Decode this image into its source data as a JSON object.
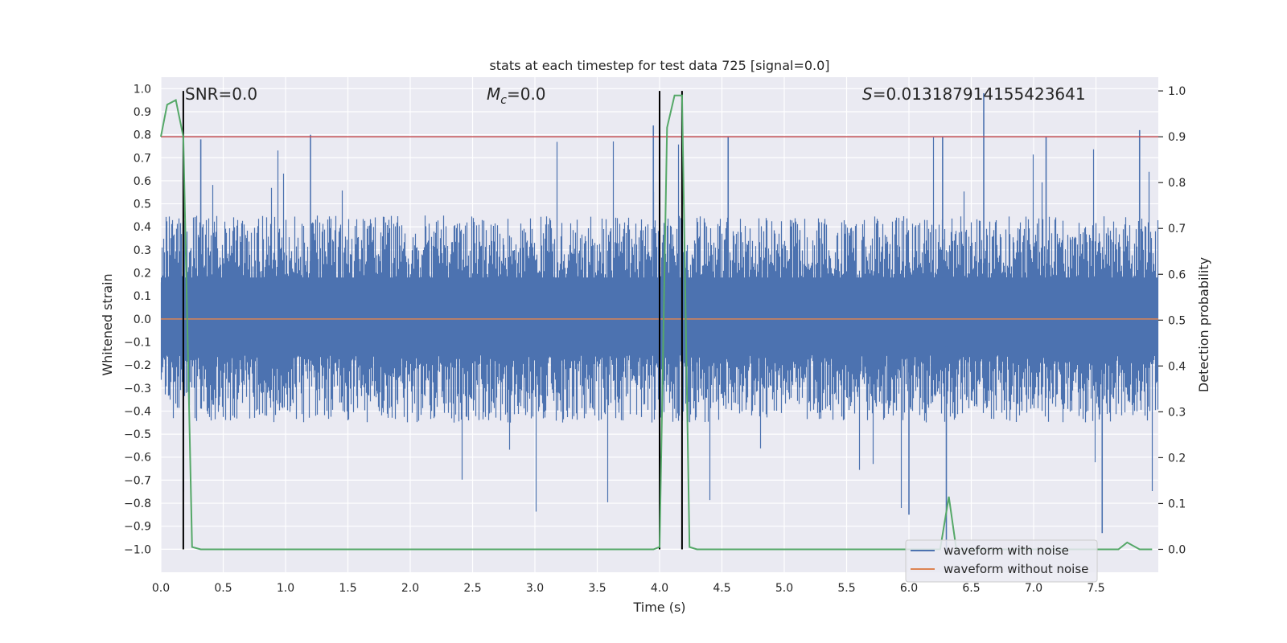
{
  "chart_data": {
    "type": "line",
    "title": "stats at each timestep for test data 725 [signal=0.0]",
    "xlabel": "Time (s)",
    "ylabel_left": "Whitened strain",
    "ylabel_right": "Detection probability",
    "xlim": [
      0.0,
      8.0
    ],
    "ylim_left": [
      -1.1,
      1.05
    ],
    "ylim_right": [
      -0.05,
      1.03
    ],
    "x_ticks": [
      "0.0",
      "0.5",
      "1.0",
      "1.5",
      "2.0",
      "2.5",
      "3.0",
      "3.5",
      "4.0",
      "4.5",
      "5.0",
      "5.5",
      "6.0",
      "6.5",
      "7.0",
      "7.5"
    ],
    "y_left_ticks": [
      "1.0",
      "0.9",
      "0.8",
      "0.7",
      "0.6",
      "0.5",
      "0.4",
      "0.3",
      "0.2",
      "0.1",
      "0.0",
      "-0.1",
      "-0.2",
      "-0.3",
      "-0.4",
      "-0.5",
      "-0.6",
      "-0.7",
      "-0.8",
      "-0.9",
      "-1.0"
    ],
    "y_right_ticks": [
      "1.0",
      "0.9",
      "0.8",
      "0.7",
      "0.6",
      "0.5",
      "0.4",
      "0.3",
      "0.2",
      "0.1",
      "0.0"
    ],
    "annotations": {
      "snr": "SNR=0.0",
      "mc_symbol": "M",
      "mc_subscript": "c",
      "mc_value": "=0.0",
      "s_symbol": "S",
      "s_value": "=0.013187914155423641"
    },
    "threshold": {
      "axis": "right",
      "value": 0.9,
      "color": "#c44e52"
    },
    "vertical_markers": [
      0.18,
      4.0,
      4.18
    ],
    "noisy_waveform": {
      "name": "waveform with noise",
      "color": "#4c72b0",
      "typical_range": [
        -0.45,
        0.45
      ],
      "max_peak": 0.98,
      "min_trough": -1.02
    },
    "clean_waveform": {
      "name": "waveform without noise",
      "color": "#dd8452",
      "value": 0.0
    },
    "detection_probability": {
      "color": "#55a868",
      "x": [
        0.0,
        0.05,
        0.12,
        0.18,
        0.25,
        0.32,
        1.0,
        2.0,
        3.0,
        3.95,
        4.0,
        4.06,
        4.12,
        4.18,
        4.24,
        4.3,
        4.5,
        5.0,
        6.0,
        6.25,
        6.32,
        6.38,
        7.0,
        7.68,
        7.75,
        7.85,
        7.95
      ],
      "y": [
        0.9,
        0.97,
        0.98,
        0.9,
        0.005,
        0.0,
        0.0,
        0.0,
        0.0,
        0.0,
        0.005,
        0.92,
        0.99,
        0.99,
        0.005,
        0.0,
        0.0,
        0.0,
        0.0,
        0.0,
        0.115,
        0.0,
        0.0,
        0.0,
        0.015,
        0.0,
        0.0
      ]
    },
    "legend": {
      "position": "lower-right",
      "entries": [
        "waveform with noise",
        "waveform without noise"
      ]
    }
  }
}
